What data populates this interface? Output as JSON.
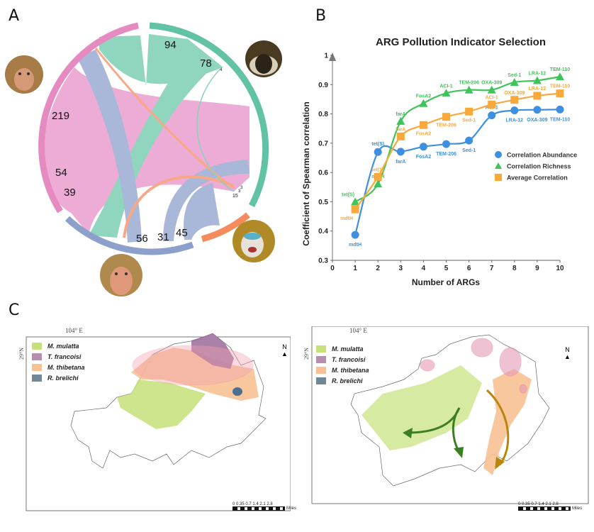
{
  "panels": {
    "a": "A",
    "b": "B",
    "c": "C"
  },
  "chord": {
    "groups": [
      {
        "name": "M. mulatta (left)",
        "color": "#e58bc2"
      },
      {
        "name": "T. francoisi",
        "color": "#62c2a6"
      },
      {
        "name": "R. brelichi",
        "color": "#f68c5e"
      },
      {
        "name": "M. mulatta (bottom)",
        "color": "#8d9fcb"
      }
    ],
    "labels": [
      "94",
      "78",
      "4",
      "219",
      "54",
      "39",
      "56",
      "31",
      "45",
      "15",
      "3",
      "3"
    ]
  },
  "chart_data": {
    "type": "line",
    "title": "ARG Pollution Indicator Selection",
    "xlabel": "Number of ARGs",
    "ylabel": "Coefficient of Spearman correlation",
    "xlim": [
      0,
      10
    ],
    "ylim": [
      0.3,
      1
    ],
    "xticks": [
      "0",
      "1",
      "2",
      "3",
      "4",
      "5",
      "6",
      "7",
      "8",
      "9",
      "10"
    ],
    "yticks": [
      "0.3",
      "0.4",
      "0.5",
      "0.6",
      "0.7",
      "0.8",
      "0.9",
      "1"
    ],
    "legend_position": "right-middle",
    "series": [
      {
        "name": "Correlation Abundance",
        "color": "#3f8fe0",
        "marker": "circle",
        "x": [
          1,
          2,
          3,
          4,
          5,
          6,
          7,
          8,
          9,
          10
        ],
        "values": [
          0.387,
          0.67,
          0.671,
          0.688,
          0.697,
          0.709,
          0.795,
          0.812,
          0.814,
          0.815
        ],
        "point_labels": [
          "mdtH",
          "tet(S)",
          "farA",
          "FosA2",
          "TEM-206",
          "Sed-1",
          "ACI-1",
          "LRA-12",
          "OXA-309",
          "TEM-110"
        ]
      },
      {
        "name": "Correlation Richness",
        "color": "#3fc45a",
        "marker": "triangle",
        "x": [
          1,
          2,
          3,
          4,
          5,
          6,
          7,
          8,
          9,
          10
        ],
        "values": [
          0.5,
          0.561,
          0.775,
          0.836,
          0.871,
          0.882,
          0.882,
          0.908,
          0.914,
          0.927
        ],
        "point_labels": [
          "tet(S)",
          "mdtH",
          "farA",
          "FosA2",
          "ACI-1",
          "TEM-206",
          "OXA-309",
          "Sed-1",
          "LRA-12",
          "TEM-110"
        ]
      },
      {
        "name": "Average Correlation",
        "color": "#f7a93b",
        "marker": "square",
        "x": [
          1,
          2,
          3,
          4,
          5,
          6,
          7,
          8,
          9,
          10
        ],
        "values": [
          0.474,
          0.585,
          0.723,
          0.762,
          0.79,
          0.808,
          0.832,
          0.848,
          0.862,
          0.87
        ],
        "point_labels": [
          "mdtH",
          "tet(S)",
          "farA",
          "FosA2",
          "TEM-206",
          "Sed-1",
          "ACI-1",
          "OXA-309",
          "LRA-12",
          "TEM-110"
        ]
      }
    ]
  },
  "maps": {
    "lon_label": "104° E",
    "lat_label": "29°N",
    "north": "N",
    "scale_ticks": [
      "0",
      "0.35",
      "0.7",
      "1.4",
      "2.1",
      "2.8"
    ],
    "scale_unit": "Miles",
    "legend": [
      {
        "label": "M. mulatta",
        "color": "#c6e17a"
      },
      {
        "label": "T. francoisi",
        "color": "#b58eb0"
      },
      {
        "label": "M. thibetana",
        "color": "#f8c193"
      },
      {
        "label": "R. brelichi",
        "color": "#6f8796"
      }
    ]
  }
}
